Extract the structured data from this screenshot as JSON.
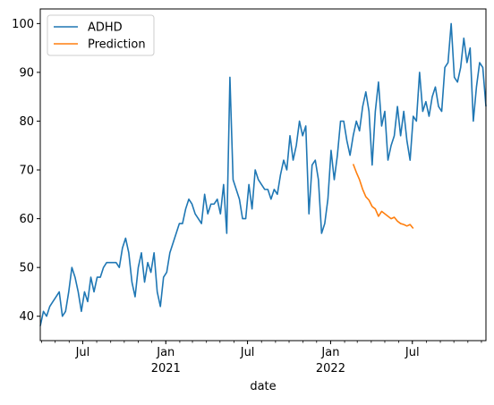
{
  "chart_data": {
    "type": "line",
    "title": "",
    "xlabel": "date",
    "ylabel": "",
    "ylim": [
      35,
      103
    ],
    "xlim": [
      "2020-03-29",
      "2022-11-06"
    ],
    "grid": false,
    "legend_position": "top-left",
    "x_major_ticks": [
      {
        "date": "2020-07-01",
        "label": "Jul",
        "sublabel": ""
      },
      {
        "date": "2021-01-01",
        "label": "Jan",
        "sublabel": "2021"
      },
      {
        "date": "2021-07-01",
        "label": "Jul",
        "sublabel": ""
      },
      {
        "date": "2022-01-01",
        "label": "Jan",
        "sublabel": "2022"
      },
      {
        "date": "2022-07-01",
        "label": "Jul",
        "sublabel": ""
      }
    ],
    "y_ticks": [
      40,
      50,
      60,
      70,
      80,
      90,
      100
    ],
    "series": [
      {
        "name": "ADHD",
        "color": "#1f77b4",
        "points": [
          [
            "2020-03-29",
            38
          ],
          [
            "2020-04-05",
            41
          ],
          [
            "2020-04-12",
            40
          ],
          [
            "2020-04-19",
            42
          ],
          [
            "2020-04-26",
            43
          ],
          [
            "2020-05-03",
            44
          ],
          [
            "2020-05-10",
            45
          ],
          [
            "2020-05-17",
            40
          ],
          [
            "2020-05-24",
            41
          ],
          [
            "2020-05-31",
            45
          ],
          [
            "2020-06-07",
            50
          ],
          [
            "2020-06-14",
            48
          ],
          [
            "2020-06-21",
            45
          ],
          [
            "2020-06-28",
            41
          ],
          [
            "2020-07-05",
            45
          ],
          [
            "2020-07-12",
            43
          ],
          [
            "2020-07-19",
            48
          ],
          [
            "2020-07-26",
            45
          ],
          [
            "2020-08-02",
            48
          ],
          [
            "2020-08-09",
            48
          ],
          [
            "2020-08-16",
            50
          ],
          [
            "2020-08-23",
            51
          ],
          [
            "2020-08-30",
            51
          ],
          [
            "2020-09-06",
            51
          ],
          [
            "2020-09-13",
            51
          ],
          [
            "2020-09-20",
            50
          ],
          [
            "2020-09-27",
            54
          ],
          [
            "2020-10-04",
            56
          ],
          [
            "2020-10-11",
            53
          ],
          [
            "2020-10-18",
            47
          ],
          [
            "2020-10-25",
            44
          ],
          [
            "2020-11-01",
            50
          ],
          [
            "2020-11-08",
            53
          ],
          [
            "2020-11-15",
            47
          ],
          [
            "2020-11-22",
            51
          ],
          [
            "2020-11-29",
            49
          ],
          [
            "2020-12-06",
            53
          ],
          [
            "2020-12-13",
            45
          ],
          [
            "2020-12-20",
            42
          ],
          [
            "2020-12-27",
            48
          ],
          [
            "2021-01-03",
            49
          ],
          [
            "2021-01-10",
            53
          ],
          [
            "2021-01-17",
            55
          ],
          [
            "2021-01-24",
            57
          ],
          [
            "2021-01-31",
            59
          ],
          [
            "2021-02-07",
            59
          ],
          [
            "2021-02-14",
            62
          ],
          [
            "2021-02-21",
            64
          ],
          [
            "2021-02-28",
            63
          ],
          [
            "2021-03-07",
            61
          ],
          [
            "2021-03-14",
            60
          ],
          [
            "2021-03-21",
            59
          ],
          [
            "2021-03-28",
            65
          ],
          [
            "2021-04-04",
            61
          ],
          [
            "2021-04-11",
            63
          ],
          [
            "2021-04-18",
            63
          ],
          [
            "2021-04-25",
            64
          ],
          [
            "2021-05-02",
            61
          ],
          [
            "2021-05-09",
            67
          ],
          [
            "2021-05-16",
            57
          ],
          [
            "2021-05-23",
            89
          ],
          [
            "2021-05-30",
            68
          ],
          [
            "2021-06-06",
            66
          ],
          [
            "2021-06-13",
            64
          ],
          [
            "2021-06-20",
            60
          ],
          [
            "2021-06-27",
            60
          ],
          [
            "2021-07-04",
            67
          ],
          [
            "2021-07-11",
            62
          ],
          [
            "2021-07-18",
            70
          ],
          [
            "2021-07-25",
            68
          ],
          [
            "2021-08-01",
            67
          ],
          [
            "2021-08-08",
            66
          ],
          [
            "2021-08-15",
            66
          ],
          [
            "2021-08-22",
            64
          ],
          [
            "2021-08-29",
            66
          ],
          [
            "2021-09-05",
            65
          ],
          [
            "2021-09-12",
            69
          ],
          [
            "2021-09-19",
            72
          ],
          [
            "2021-09-26",
            70
          ],
          [
            "2021-10-03",
            77
          ],
          [
            "2021-10-10",
            72
          ],
          [
            "2021-10-17",
            75
          ],
          [
            "2021-10-24",
            80
          ],
          [
            "2021-10-31",
            77
          ],
          [
            "2021-11-07",
            79
          ],
          [
            "2021-11-14",
            61
          ],
          [
            "2021-11-21",
            71
          ],
          [
            "2021-11-28",
            72
          ],
          [
            "2021-12-05",
            68
          ],
          [
            "2021-12-12",
            57
          ],
          [
            "2021-12-19",
            59
          ],
          [
            "2021-12-26",
            64
          ],
          [
            "2022-01-02",
            74
          ],
          [
            "2022-01-09",
            68
          ],
          [
            "2022-01-16",
            73
          ],
          [
            "2022-01-23",
            80
          ],
          [
            "2022-01-30",
            80
          ],
          [
            "2022-02-06",
            76
          ],
          [
            "2022-02-13",
            73
          ],
          [
            "2022-02-20",
            77
          ],
          [
            "2022-02-27",
            80
          ],
          [
            "2022-03-06",
            78
          ],
          [
            "2022-03-13",
            83
          ],
          [
            "2022-03-20",
            86
          ],
          [
            "2022-03-27",
            82
          ],
          [
            "2022-04-03",
            71
          ],
          [
            "2022-04-10",
            82
          ],
          [
            "2022-04-17",
            88
          ],
          [
            "2022-04-24",
            79
          ],
          [
            "2022-05-01",
            82
          ],
          [
            "2022-05-08",
            72
          ],
          [
            "2022-05-15",
            75
          ],
          [
            "2022-05-22",
            77
          ],
          [
            "2022-05-29",
            83
          ],
          [
            "2022-06-05",
            77
          ],
          [
            "2022-06-12",
            82
          ],
          [
            "2022-06-19",
            76
          ],
          [
            "2022-06-26",
            72
          ],
          [
            "2022-07-03",
            81
          ],
          [
            "2022-07-10",
            80
          ],
          [
            "2022-07-17",
            90
          ],
          [
            "2022-07-24",
            82
          ],
          [
            "2022-07-31",
            84
          ],
          [
            "2022-08-07",
            81
          ],
          [
            "2022-08-14",
            85
          ],
          [
            "2022-08-21",
            87
          ],
          [
            "2022-08-28",
            83
          ],
          [
            "2022-09-04",
            82
          ],
          [
            "2022-09-11",
            91
          ],
          [
            "2022-09-18",
            92
          ],
          [
            "2022-09-25",
            100
          ],
          [
            "2022-10-02",
            89
          ],
          [
            "2022-10-09",
            88
          ],
          [
            "2022-10-16",
            91
          ],
          [
            "2022-10-23",
            97
          ],
          [
            "2022-10-30",
            92
          ],
          [
            "2022-11-06",
            95
          ],
          [
            "2022-11-13",
            80
          ],
          [
            "2022-11-20",
            87
          ],
          [
            "2022-11-27",
            92
          ],
          [
            "2022-12-04",
            91
          ],
          [
            "2022-12-11",
            83
          ]
        ]
      },
      {
        "name": "Prediction",
        "color": "#ff7f0e",
        "points": [
          [
            "2022-02-20",
            71.2
          ],
          [
            "2022-02-27",
            69.5
          ],
          [
            "2022-03-06",
            68.0
          ],
          [
            "2022-03-13",
            66.0
          ],
          [
            "2022-03-20",
            64.5
          ],
          [
            "2022-03-27",
            63.8
          ],
          [
            "2022-04-03",
            62.5
          ],
          [
            "2022-04-10",
            62.0
          ],
          [
            "2022-04-17",
            60.5
          ],
          [
            "2022-04-24",
            61.5
          ],
          [
            "2022-05-01",
            61.0
          ],
          [
            "2022-05-08",
            60.5
          ],
          [
            "2022-05-15",
            60.0
          ],
          [
            "2022-05-22",
            60.3
          ],
          [
            "2022-05-29",
            59.5
          ],
          [
            "2022-06-05",
            59.0
          ],
          [
            "2022-06-12",
            58.8
          ],
          [
            "2022-06-19",
            58.5
          ],
          [
            "2022-06-26",
            58.8
          ],
          [
            "2022-07-03",
            58.0
          ]
        ]
      }
    ]
  }
}
